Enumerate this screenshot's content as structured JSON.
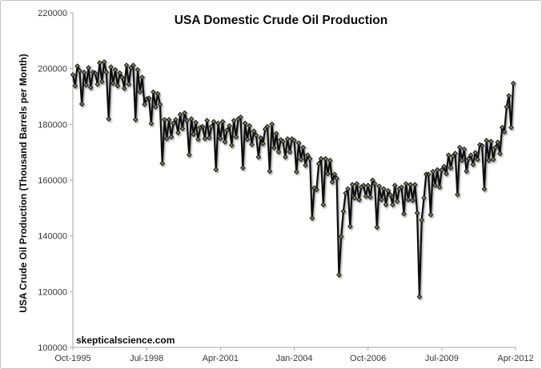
{
  "window": {
    "background": "#ffffff",
    "border_color": "#c4c4c4"
  },
  "watermark": "skepticalscience.com",
  "chart_data": {
    "type": "line",
    "title": "USA Domestic Crude Oil Production",
    "xlabel": "",
    "ylabel": "USA Crude Oil Production (Thousand Barrels per Month)",
    "ylim": [
      100000,
      220000
    ],
    "ytick_interval": 20000,
    "ytick_labels": [
      "220000",
      "200000",
      "180000",
      "160000",
      "140000",
      "120000",
      "100000"
    ],
    "xtick_labels": [
      "Oct-1995",
      "Jul-1998",
      "Apr-2001",
      "Jan-2004",
      "Oct-2006",
      "Jul-2009",
      "Apr-2012"
    ],
    "x_start": "Oct-1995",
    "x_end": "Mar-2012",
    "x_frequency": "monthly",
    "months_span": 198,
    "grid": false,
    "legend_position": "none",
    "line_color": "#0f0f0f",
    "marker_shape": "diamond",
    "marker_fill": "#85855c",
    "marker_stroke": "#141414",
    "axis_color": "#a6a6a6",
    "series": [
      {
        "name": "USA crude oil production (thousand barrels per month)",
        "values": [
          197800,
          193800,
          200900,
          199300,
          187300,
          198700,
          194100,
          200300,
          193200,
          198700,
          198400,
          194400,
          202100,
          195300,
          202400,
          198700,
          182000,
          200600,
          194700,
          199600,
          193800,
          198400,
          196900,
          192900,
          201200,
          194400,
          200300,
          201200,
          181700,
          199600,
          191700,
          196900,
          187200,
          189100,
          189400,
          180300,
          191600,
          186300,
          191000,
          187200,
          166000,
          181700,
          174900,
          181700,
          175500,
          180400,
          181700,
          177000,
          183500,
          178500,
          184100,
          181400,
          169100,
          182000,
          176400,
          180700,
          174600,
          178900,
          179200,
          174900,
          181400,
          175200,
          179200,
          181000,
          163800,
          180400,
          174900,
          181000,
          173700,
          177900,
          179500,
          172500,
          181400,
          175500,
          182000,
          182600,
          164400,
          180400,
          174600,
          179500,
          172800,
          177600,
          176100,
          168300,
          175200,
          173100,
          178300,
          179200,
          163200,
          180100,
          171600,
          176700,
          170100,
          174500,
          173900,
          168300,
          174800,
          170100,
          174800,
          174200,
          163000,
          173300,
          167400,
          171700,
          165300,
          169000,
          167700,
          146400,
          157200,
          156600,
          165900,
          167700,
          151200,
          167700,
          162300,
          167100,
          159300,
          162100,
          160600,
          126000,
          139800,
          148800,
          155300,
          156900,
          143400,
          158400,
          153600,
          158700,
          153000,
          157500,
          158100,
          154200,
          158100,
          153900,
          160000,
          158700,
          143100,
          157800,
          153000,
          156900,
          151200,
          156200,
          154700,
          151200,
          158100,
          152400,
          156900,
          157500,
          147900,
          158700,
          153000,
          158400,
          152700,
          158400,
          148200,
          118200,
          145700,
          153600,
          162100,
          162100,
          147600,
          163100,
          158100,
          163700,
          157500,
          163700,
          164900,
          162300,
          169000,
          164400,
          168600,
          169600,
          154800,
          171700,
          167100,
          171100,
          163200,
          167700,
          169000,
          165600,
          169900,
          167400,
          172700,
          172400,
          156800,
          174200,
          167100,
          173900,
          167400,
          171700,
          173600,
          169500,
          178900,
          177300,
          186300,
          190300,
          178900,
          194700
        ]
      }
    ]
  }
}
